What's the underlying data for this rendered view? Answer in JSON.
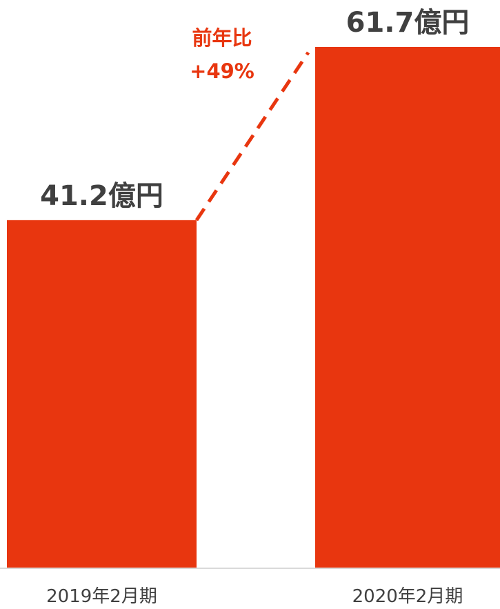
{
  "chart_data": {
    "type": "bar",
    "categories": [
      "2019年2月期",
      "2020年2月期"
    ],
    "values": [
      41.2,
      61.7
    ],
    "value_labels": [
      "41.2億円",
      "61.7億円"
    ],
    "annotation": {
      "line1": "前年比",
      "line2": "+49%"
    },
    "unit": "億円",
    "ylim": [
      0,
      61.7
    ],
    "grid": false,
    "legend": "none"
  },
  "colors": {
    "bar": "#e8360f",
    "annotation": "#e8360f",
    "value_text": "#404040",
    "category_text": "#404040",
    "axis": "#d9d9d9"
  }
}
